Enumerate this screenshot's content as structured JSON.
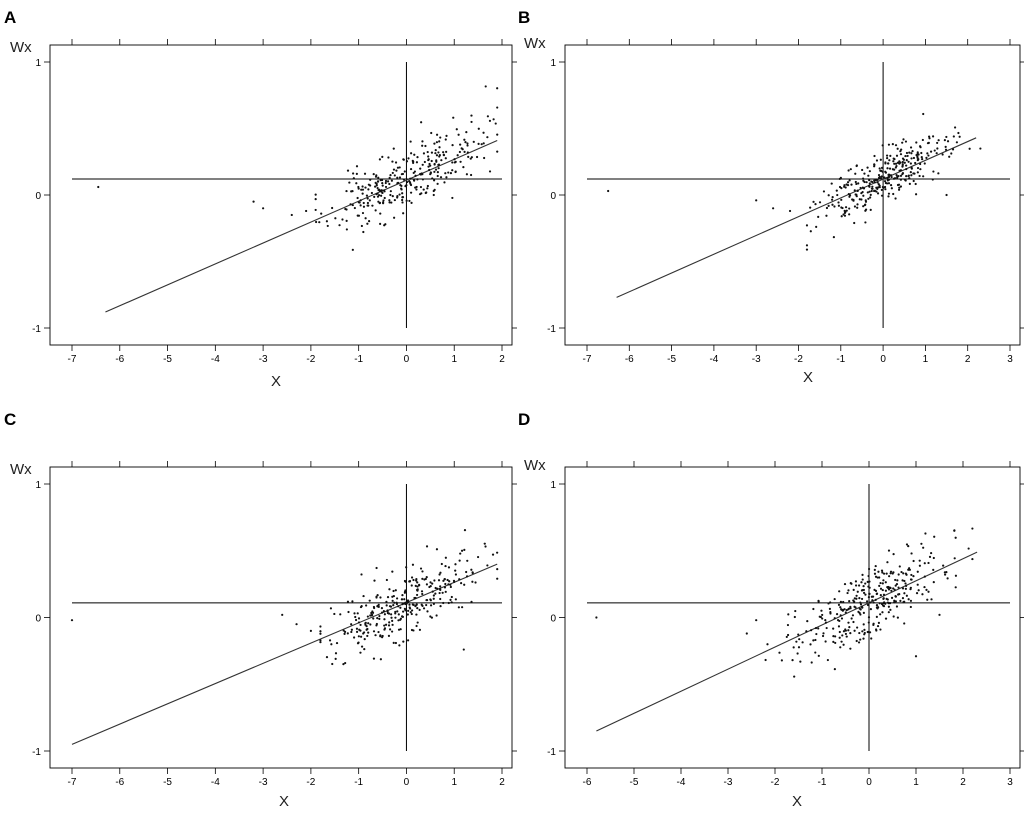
{
  "chart_data": [
    {
      "type": "scatter",
      "panel_label": "A",
      "ylabel": "Wx",
      "xlabel": "X",
      "xlim": [
        -7,
        2
      ],
      "ylim": [
        -1,
        1
      ],
      "x_ticks": [
        -7,
        -6,
        -5,
        -4,
        -3,
        -2,
        -1,
        0,
        1,
        2
      ],
      "y_ticks": [
        -1,
        0,
        1
      ],
      "grid": false,
      "reference_lines": {
        "horizontal_y": 0.12,
        "vertical_x": 0
      },
      "regression_line": [
        [
          -6.3,
          -0.88
        ],
        [
          1.9,
          0.41
        ]
      ],
      "point_count": 320,
      "seed": 11,
      "cluster": {
        "x_mean": 0.0,
        "x_sd": 0.8,
        "intercept": 0.12,
        "slope": 0.17,
        "noise": 0.12,
        "x_min": -1.9,
        "x_max": 1.9
      },
      "outliers": [
        [
          -6.45,
          0.06
        ],
        [
          -3.2,
          -0.05
        ],
        [
          -3.0,
          -0.1
        ],
        [
          -2.4,
          -0.15
        ],
        [
          -2.1,
          -0.12
        ]
      ]
    },
    {
      "type": "scatter",
      "panel_label": "B",
      "ylabel": "Wx",
      "xlabel": "X",
      "xlim": [
        -7,
        3
      ],
      "ylim": [
        -1,
        1
      ],
      "x_ticks": [
        -7,
        -6,
        -5,
        -4,
        -3,
        -2,
        -1,
        0,
        1,
        2,
        3
      ],
      "y_ticks": [
        -1,
        0,
        1
      ],
      "grid": false,
      "reference_lines": {
        "horizontal_y": 0.12,
        "vertical_x": 0
      },
      "regression_line": [
        [
          -6.3,
          -0.77
        ],
        [
          2.2,
          0.43
        ]
      ],
      "point_count": 320,
      "seed": 23,
      "cluster": {
        "x_mean": 0.0,
        "x_sd": 0.75,
        "intercept": 0.12,
        "slope": 0.17,
        "noise": 0.1,
        "x_min": -1.8,
        "x_max": 2.3
      },
      "outliers": [
        [
          -6.5,
          0.03
        ],
        [
          -3.0,
          -0.04
        ],
        [
          -2.6,
          -0.1
        ],
        [
          -2.2,
          -0.12
        ],
        [
          1.5,
          0.0
        ]
      ]
    },
    {
      "type": "scatter",
      "panel_label": "C",
      "ylabel": "Wx",
      "xlabel": "X",
      "xlim": [
        -7,
        2
      ],
      "ylim": [
        -1,
        1
      ],
      "x_ticks": [
        -7,
        -6,
        -5,
        -4,
        -3,
        -2,
        -1,
        0,
        1,
        2
      ],
      "y_ticks": [
        -1,
        0,
        1
      ],
      "grid": false,
      "reference_lines": {
        "horizontal_y": 0.11,
        "vertical_x": 0
      },
      "regression_line": [
        [
          -7.0,
          -0.95
        ],
        [
          1.9,
          0.4
        ]
      ],
      "point_count": 320,
      "seed": 37,
      "cluster": {
        "x_mean": 0.0,
        "x_sd": 0.8,
        "intercept": 0.11,
        "slope": 0.17,
        "noise": 0.12,
        "x_min": -1.8,
        "x_max": 1.9
      },
      "outliers": [
        [
          -7.0,
          -0.02
        ],
        [
          -2.6,
          0.02
        ],
        [
          -2.3,
          -0.05
        ],
        [
          -2.0,
          -0.1
        ],
        [
          1.2,
          -0.24
        ]
      ]
    },
    {
      "type": "scatter",
      "panel_label": "D",
      "ylabel": "Wx",
      "xlabel": "X",
      "xlim": [
        -6,
        3
      ],
      "ylim": [
        -1,
        1
      ],
      "x_ticks": [
        -6,
        -5,
        -4,
        -3,
        -2,
        -1,
        0,
        1,
        2,
        3
      ],
      "y_ticks": [
        -1,
        0,
        1
      ],
      "grid": false,
      "reference_lines": {
        "horizontal_y": 0.11,
        "vertical_x": 0
      },
      "regression_line": [
        [
          -5.8,
          -0.85
        ],
        [
          2.3,
          0.49
        ]
      ],
      "point_count": 340,
      "seed": 53,
      "cluster": {
        "x_mean": 0.0,
        "x_sd": 0.8,
        "intercept": 0.11,
        "slope": 0.17,
        "noise": 0.13,
        "x_min": -2.2,
        "x_max": 2.2
      },
      "outliers": [
        [
          -5.8,
          0.0
        ],
        [
          -2.6,
          -0.12
        ],
        [
          -2.4,
          -0.02
        ],
        [
          1.0,
          -0.29
        ],
        [
          1.5,
          0.02
        ]
      ]
    }
  ]
}
